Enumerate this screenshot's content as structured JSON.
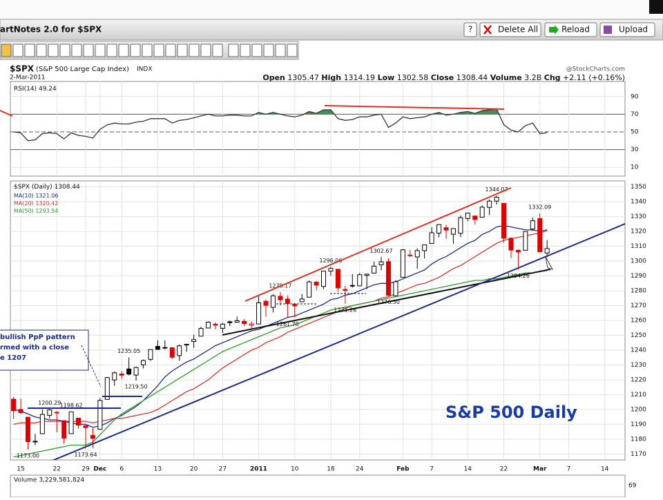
{
  "window": {
    "title": "artNotes 2.0 for $SPX",
    "buttons": [
      "?",
      "Delete All",
      "Reload",
      "Upload"
    ]
  },
  "chart_data": {
    "type": "candlestick",
    "title": "$SPX",
    "subtitle": "(S&P 500 Large Cap Index)",
    "exchange": "INDX",
    "date": "2-Mar-2011",
    "source": "@StockCharts.com",
    "quote_labels": [
      "Open",
      "High",
      "Low",
      "Close",
      "Volume",
      "Chg"
    ],
    "volume_text": "3.2B",
    "change_text": "+2.11 (+0.16%)",
    "legend_title": "$SPX (Daily)",
    "chart_label": "S&P 500 Daily",
    "callout": [
      "bullish PpP pattern",
      "rmed with a close",
      "e 1207"
    ],
    "up_color": "#000000",
    "down_color": "#e00000",
    "categories": [
      null,
      "15",
      null,
      null,
      null,
      null,
      "22",
      null,
      null,
      null,
      "29",
      null,
      "Dec",
      null,
      null,
      "6",
      null,
      null,
      null,
      null,
      "13",
      null,
      null,
      null,
      null,
      "20",
      null,
      null,
      null,
      "27",
      null,
      null,
      null,
      null,
      "2011",
      null,
      null,
      null,
      null,
      "10",
      null,
      null,
      null,
      null,
      "18",
      null,
      null,
      null,
      "24",
      null,
      null,
      null,
      null,
      null,
      "Feb",
      null,
      null,
      null,
      "7",
      null,
      null,
      null,
      null,
      "14",
      null,
      null,
      null,
      null,
      "22",
      null,
      null,
      null,
      null,
      "Mar",
      null,
      null,
      null,
      "7",
      null,
      null,
      null,
      null,
      "14",
      null,
      null
    ],
    "open": [
      1207,
      1200,
      1194.8,
      1178.3,
      1183.7,
      1196.1,
      1198.1,
      1192.5,
      1183.7,
      1194.2,
      1189.1,
      1182.6,
      1186.6,
      1206.8,
      1219.9,
      1223.9,
      1227.3,
      1223.2,
      1230.1,
      1233.8,
      1242.5,
      1241.8,
      1241.6,
      1236.3,
      1243.6,
      1245.8,
      1249.4,
      1254.9,
      1257.5,
      1254.7,
      1259.1,
      1258.8,
      1259.4,
      1256.8,
      1257.6,
      1272.9,
      1268.8,
      1276.3,
      1274.4,
      1270.8,
      1272.6,
      1275.7,
      1285.8,
      1282.9,
      1293.2,
      1294.5,
      1280.9,
      1283.6,
      1283.3,
      1290.4,
      1291.9,
      1297.5,
      1299.6,
      1276.6,
      1289.1,
      1304.1,
      1302.8,
      1307,
      1311.9,
      1318.8,
      1322.5,
      1318.1,
      1318.7,
      1328.7,
      1330.4,
      1329.6,
      1336.2,
      1340.4,
      1338.9,
      1315.4,
      1307.3,
      1307.3,
      1321.6,
      1328.6,
      1305.47,
      null,
      null,
      null,
      null,
      null,
      null,
      null,
      null,
      null,
      null
    ],
    "high": [
      1208.5,
      1207.4,
      1194.8,
      1183.6,
      1200,
      1200.29,
      1198.9,
      1192.5,
      1198.62,
      1194.2,
      1189.1,
      1187.4,
      1207.6,
      1221.9,
      1225.6,
      1225.8,
      1235.05,
      1228.9,
      1233.7,
      1240.4,
      1246.7,
      1246.6,
      1241.9,
      1243.8,
      1244.3,
      1250.4,
      1255.8,
      1259.4,
      1258.6,
      1258.4,
      1259.9,
      1262.6,
      1261,
      1259.3,
      1276.2,
      1274.1,
      1277.6,
      1279.17,
      1276.8,
      1271.5,
      1277.9,
      1286.9,
      1286.7,
      1293.2,
      1296.06,
      1294.6,
      1283.3,
      1291.2,
      1291.9,
      1291.3,
      1299.7,
      1302.67,
      1301.9,
      1287.2,
      1308.1,
      1307.6,
      1308.6,
      1311,
      1322.9,
      1324.9,
      1324.5,
      1322,
      1330.8,
      1332.5,
      1330.4,
      1337.6,
      1341.5,
      1344.07,
      1338.9,
      1316,
      1308,
      1320,
      1329.4,
      1332.09,
      1314.19,
      null,
      null,
      null,
      null,
      null,
      null,
      null,
      null,
      null,
      null
    ],
    "low": [
      1193.5,
      1197.2,
      1173,
      1175.9,
      1183.7,
      1194,
      1184.6,
      1176.9,
      1183.7,
      1186.9,
      1173.64,
      1174.1,
      1186.6,
      1206.8,
      1216,
      1220.7,
      1223,
      1219.5,
      1227.7,
      1232.6,
      1240.3,
      1240.4,
      1233.9,
      1232.8,
      1238.9,
      1241.5,
      1249.4,
      1254.9,
      1254,
      1251.5,
      1256.2,
      1258.8,
      1256.1,
      1254.2,
      1257.6,
      1262.7,
      1265.4,
      1270.3,
      1261.7,
      1262.2,
      1272.6,
      1275.7,
      1280.5,
      1281.1,
      1290.2,
      1278.9,
      1271.26,
      1282.1,
      1283.1,
      1281.1,
      1291.9,
      1293.8,
      1276.5,
      1276.6,
      1289.1,
      1302.6,
      1294.8,
      1301.7,
      1311.9,
      1316,
      1314.9,
      1311.7,
      1316.1,
      1326.9,
      1324.6,
      1329.6,
      1331,
      1338.1,
      1312.3,
      1302,
      1294.26,
      1307.3,
      1320.5,
      1306,
      1302.58,
      null,
      null,
      null,
      null,
      null,
      null,
      null,
      null,
      null,
      null
    ],
    "close": [
      1199.2,
      1197.8,
      1178.3,
      1178.6,
      1196.7,
      1199.7,
      1197.8,
      1180.7,
      1198.4,
      1189.4,
      1187.8,
      1180.6,
      1206.1,
      1221.5,
      1224.7,
      1223.1,
      1223.8,
      1228.3,
      1233,
      1240.4,
      1240.5,
      1241.6,
      1235.2,
      1242.9,
      1243.9,
      1247.1,
      1254.6,
      1258.8,
      1256.8,
      1257.5,
      1258.5,
      1259.8,
      1257.9,
      1257.6,
      1271.9,
      1270.2,
      1276.6,
      1273.9,
      1271.5,
      1269.8,
      1274.5,
      1286,
      1283.8,
      1293.2,
      1295,
      1281.9,
      1280.3,
      1283.4,
      1290.8,
      1291.2,
      1296.6,
      1299.5,
      1276.9,
      1286.1,
      1307.6,
      1304,
      1307.1,
      1310.9,
      1319.1,
      1324.6,
      1320.9,
      1321.9,
      1329.2,
      1332.3,
      1328,
      1336.3,
      1340.4,
      1343,
      1315.4,
      1307.4,
      1306.1,
      1319.9,
      1327.2,
      1306.3,
      1308.44,
      null,
      null,
      null,
      null,
      null,
      null,
      null,
      null,
      null,
      null
    ],
    "high_labels": [
      null,
      null,
      null,
      null,
      null,
      "1200.29",
      null,
      null,
      "1198.62",
      null,
      null,
      null,
      null,
      null,
      null,
      null,
      "1235.05",
      null,
      null,
      null,
      null,
      null,
      null,
      null,
      null,
      null,
      null,
      null,
      null,
      null,
      null,
      null,
      null,
      null,
      null,
      null,
      null,
      "1279.17",
      null,
      null,
      null,
      null,
      null,
      null,
      "1296.06",
      null,
      null,
      null,
      null,
      null,
      null,
      "1302.67",
      null,
      null,
      null,
      null,
      null,
      null,
      null,
      null,
      null,
      null,
      null,
      null,
      null,
      null,
      null,
      "1344.07",
      null,
      null,
      null,
      null,
      null,
      "1332.09",
      null,
      null,
      null,
      null,
      null,
      null,
      null,
      null,
      null,
      null,
      null
    ],
    "low_labels": [
      null,
      null,
      "1173.00",
      null,
      null,
      null,
      null,
      null,
      null,
      null,
      "1173.64",
      null,
      null,
      null,
      null,
      null,
      null,
      "1219.50",
      null,
      null,
      null,
      null,
      null,
      null,
      null,
      null,
      null,
      null,
      null,
      null,
      null,
      null,
      null,
      null,
      null,
      null,
      null,
      null,
      "1261.70",
      null,
      null,
      null,
      null,
      null,
      null,
      null,
      "1271.26",
      null,
      null,
      null,
      null,
      null,
      "1276.50",
      null,
      null,
      null,
      null,
      null,
      null,
      null,
      null,
      null,
      null,
      null,
      null,
      null,
      null,
      null,
      null,
      null,
      "1294.26",
      null,
      null,
      null,
      null,
      null,
      null,
      null,
      null,
      null,
      null,
      null,
      null,
      null,
      null
    ],
    "series": [
      {
        "name": "MA(10)",
        "color": "#1a2a8a",
        "values": [
          1200,
          1199,
          1197,
          1195,
          1194,
          1193,
          1193,
          1192,
          1191,
          1190,
          1190,
          1188,
          1189,
          1191,
          1194,
          1196,
          1199,
          1202,
          1206,
          1211,
          1216,
          1222,
          1226,
          1229,
          1232,
          1234,
          1237,
          1240,
          1243,
          1245,
          1247,
          1249,
          1251,
          1253,
          1254,
          1256,
          1258,
          1260,
          1262,
          1263,
          1265,
          1267,
          1269,
          1271,
          1274,
          1275,
          1277,
          1278,
          1280,
          1282,
          1284,
          1285,
          1285,
          1286,
          1288,
          1290,
          1292,
          1294,
          1298,
          1301,
          1303,
          1306,
          1309,
          1312,
          1314,
          1318,
          1320,
          1323,
          1324,
          1323,
          1322,
          1321,
          1321,
          1320,
          1321.06,
          null,
          null,
          null,
          null,
          null,
          null,
          null,
          null,
          null,
          null
        ]
      },
      {
        "name": "MA(20)",
        "color": "#e03030",
        "values": [
          1190,
          1191,
          1191,
          1191,
          1192,
          1192,
          1192,
          1192,
          1192,
          1192,
          1192,
          1191,
          1192,
          1193,
          1194,
          1194,
          1195,
          1196,
          1197,
          1198,
          1200,
          1203,
          1206,
          1209,
          1212,
          1214,
          1217,
          1220,
          1224,
          1228,
          1231,
          1234,
          1237,
          1240,
          1242,
          1245,
          1247,
          1249,
          1252,
          1254,
          1256,
          1258,
          1260,
          1262,
          1264,
          1266,
          1268,
          1270,
          1271,
          1272,
          1273,
          1275,
          1276,
          1278,
          1280,
          1282,
          1284,
          1285,
          1287,
          1289,
          1292,
          1295,
          1297,
          1300,
          1303,
          1306,
          1309,
          1312,
          1314,
          1315,
          1316,
          1317,
          1318,
          1319,
          1320.42,
          null,
          null,
          null,
          null,
          null,
          null,
          null,
          null,
          null,
          null
        ]
      },
      {
        "name": "MA(50)",
        "color": "#2a9a2a",
        "values": [
          1168,
          1169,
          1170,
          1171,
          1172,
          1173,
          1174,
          1175,
          1176,
          1176,
          1176,
          1178,
          1183,
          1188,
          1193,
          1197,
          1200,
          1203,
          1206,
          1209,
          1212,
          1215,
          1218,
          1221,
          1224,
          1227,
          1230,
          1233,
          1236,
          1239,
          1241,
          1243,
          1245,
          1247,
          1249,
          1251,
          1253,
          1255,
          1256,
          1257,
          1259,
          1261,
          1263,
          1265,
          1267,
          1268,
          1269,
          1270,
          1271,
          1272,
          1273,
          1274,
          1275,
          1276,
          1277,
          1278,
          1279,
          1280,
          1281,
          1282,
          1283,
          1284,
          1285,
          1286,
          1287,
          1287,
          1288,
          1288,
          1289,
          1290,
          1291,
          1292,
          1292,
          1293,
          1293.54,
          null,
          null,
          null,
          null,
          null,
          null,
          null,
          null,
          null,
          null
        ]
      }
    ],
    "ylim": [
      1166,
      1354
    ],
    "yticks": [
      1170,
      1180,
      1190,
      1200,
      1210,
      1220,
      1230,
      1240,
      1250,
      1260,
      1270,
      1280,
      1290,
      1300,
      1310,
      1320,
      1330,
      1340,
      1350
    ],
    "grid": true,
    "rsi": {
      "name": "RSI(14)",
      "color": "#333333",
      "fill_color": "#4a8a5a",
      "threshold": 70,
      "ylim": [
        0,
        107
      ],
      "yticks": [
        10,
        30,
        50,
        70,
        90
      ],
      "values": [
        50,
        49,
        40,
        41,
        48,
        49,
        48,
        42,
        49,
        46,
        45,
        43,
        53,
        58,
        60,
        59,
        59,
        61,
        62,
        65,
        65,
        65,
        60,
        63,
        64,
        66,
        68,
        70,
        68,
        68,
        69,
        69,
        68,
        68,
        72,
        70,
        72,
        70,
        68,
        67,
        69,
        73,
        71,
        75,
        75,
        65,
        63,
        64,
        67,
        67,
        69,
        70,
        55,
        60,
        67,
        65,
        66,
        67,
        70,
        72,
        69,
        70,
        72,
        73,
        71,
        74,
        75,
        76,
        58,
        52,
        50,
        57,
        60,
        48,
        49.24,
        null,
        null,
        null,
        null,
        null,
        null,
        null,
        null,
        null,
        null
      ]
    },
    "volume": {
      "label": "Volume 3,229,581,824",
      "tick": "69"
    }
  }
}
